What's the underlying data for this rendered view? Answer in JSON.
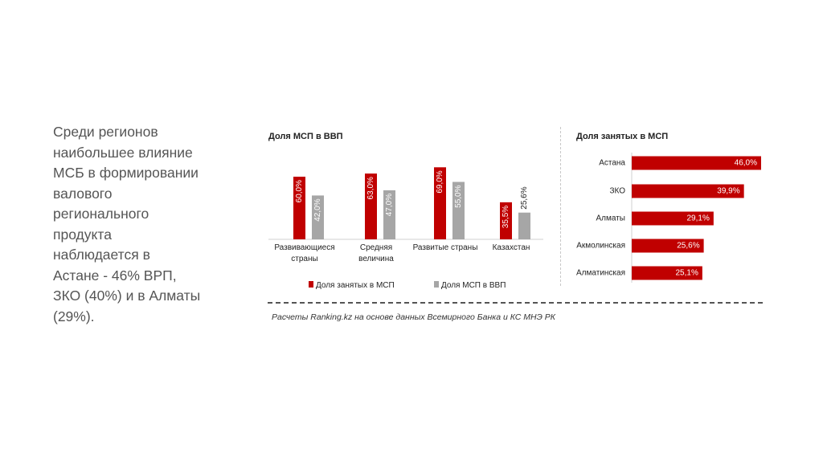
{
  "text": "Среди регионов\nнаибольшее влияние\nМСБ в формировании\nвалового\nрегионального\nпродукта\nнаблюдается в\nАстане - 46% ВРП,\nЗКО (40%) и в Алматы\n(29%).",
  "source": "Расчеты Ranking.kz на основе данных Всемирного Банка и КС МНЭ РК",
  "colors": {
    "red": "#c00000",
    "gray": "#a6a6a6"
  },
  "chart_data": [
    {
      "type": "bar",
      "title": "Доля МСП в ВВП",
      "categories": [
        "Развивающиеся страны",
        "Средняя величина",
        "Развитые страны",
        "Казахстан"
      ],
      "category_lines": [
        [
          "Развивающиеся",
          "страны"
        ],
        [
          "Средняя",
          "величина"
        ],
        [
          "Развитые страны"
        ],
        [
          "Казахстан"
        ]
      ],
      "series": [
        {
          "name": "Доля занятых в МСП",
          "color": "#c00000",
          "values": [
            60.0,
            63.0,
            69.0,
            35.5
          ],
          "labels": [
            "60,0%",
            "63,0%",
            "69,0%",
            "35,5%"
          ]
        },
        {
          "name": "Доля МСП в ВВП",
          "color": "#a6a6a6",
          "values": [
            42.0,
            47.0,
            55.0,
            25.6
          ],
          "labels": [
            "42,0%",
            "47,0%",
            "55,0%",
            "25,6%"
          ]
        }
      ],
      "legend": "bottom"
    },
    {
      "type": "bar",
      "orientation": "horizontal",
      "title": "Доля занятых в МСП",
      "categories": [
        "Астана",
        "ЗКО",
        "Алматы",
        "Акмолинская",
        "Алматинская"
      ],
      "values": [
        46.0,
        39.9,
        29.1,
        25.6,
        25.1
      ],
      "labels": [
        "46,0%",
        "39,9%",
        "29,1%",
        "25,6%",
        "25,1%"
      ],
      "color": "#c00000"
    }
  ]
}
